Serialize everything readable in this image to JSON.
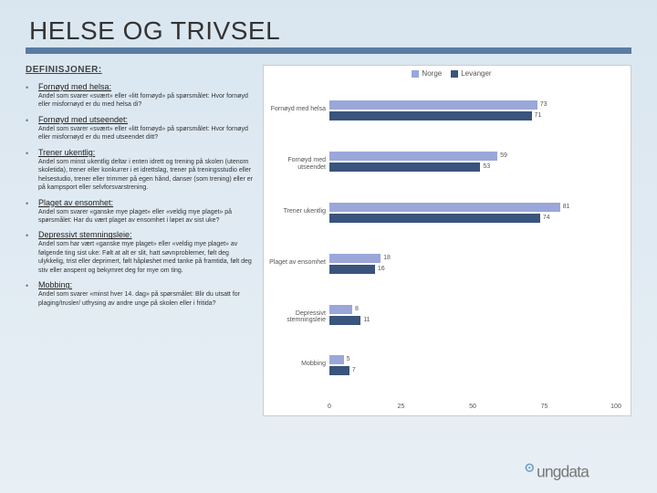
{
  "title": "HELSE OG TRIVSEL",
  "defs_heading": "DEFINISJONER:",
  "definitions": [
    {
      "term": "Fornøyd med helsa:",
      "desc": "Andel som svarer «svært» eller «litt fornøyd» på spørsmålet: Hvor fornøyd eller misfornøyd er du med helsa di?"
    },
    {
      "term": "Fornøyd med utseendet:",
      "desc": "Andel som svarer «svært» eller «litt fornøyd» på spørsmålet: Hvor fornøyd eller misfornøyd er du med utseendet ditt?"
    },
    {
      "term": "Trener ukentlig:",
      "desc": "Andel som minst ukentlig deltar i enten idrett og trening på skolen (utenom skoletida), trener eller konkurrer i et idrettslag, trener på treningsstudio eller helsestudio, trener eller trimmer på egen hånd, danser (som trening) eller er på kampsport eller selvforsvarstrening."
    },
    {
      "term": "Plaget av ensomhet:",
      "desc": "Andel som svarer «ganske mye plaget» eller «veldig mye plaget» på spørsmålet: Har du vært plaget av ensomhet i løpet av sist uke?"
    },
    {
      "term": "Depressivt stemningsleie:",
      "desc": "Andel som har vært «ganske mye plaget» eller «veldig mye plaget» av følgende ting sist uke: Følt at alt er slit, hatt søvnproblemer, følt deg ulykkelig, trist eller deprimert, følt håpløshet med tanke på framtida, følt deg stiv eller anspent og bekymret deg for mye om ting."
    },
    {
      "term": "Mobbing:",
      "desc": "Andel som svarer «minst hver 14. dag» på spørsmålet: Blir du utsatt for plaging/trusler/ utfrysing av andre unge på skolen eller i fritida?"
    }
  ],
  "chart": {
    "legend": [
      {
        "label": "Norge",
        "color": "#9aa7d8"
      },
      {
        "label": "Levanger",
        "color": "#3a547d"
      }
    ],
    "categories": [
      {
        "label": "Fornøyd med helsa",
        "values": [
          73,
          71
        ]
      },
      {
        "label": "Fornøyd med utseendet",
        "values": [
          59,
          53
        ]
      },
      {
        "label": "Trener ukentlig",
        "values": [
          81,
          74
        ]
      },
      {
        "label": "Plaget av ensomhet",
        "values": [
          18,
          16
        ]
      },
      {
        "label": "Depressivt stemningsleie",
        "values": [
          8,
          11
        ]
      },
      {
        "label": "Mobbing",
        "values": [
          5,
          7
        ]
      }
    ],
    "xmax": 100,
    "xticks": [
      0,
      25,
      50,
      75,
      100
    ],
    "colors": [
      "#9aa7d8",
      "#3a547d"
    ]
  },
  "logo_text": "ungdata"
}
